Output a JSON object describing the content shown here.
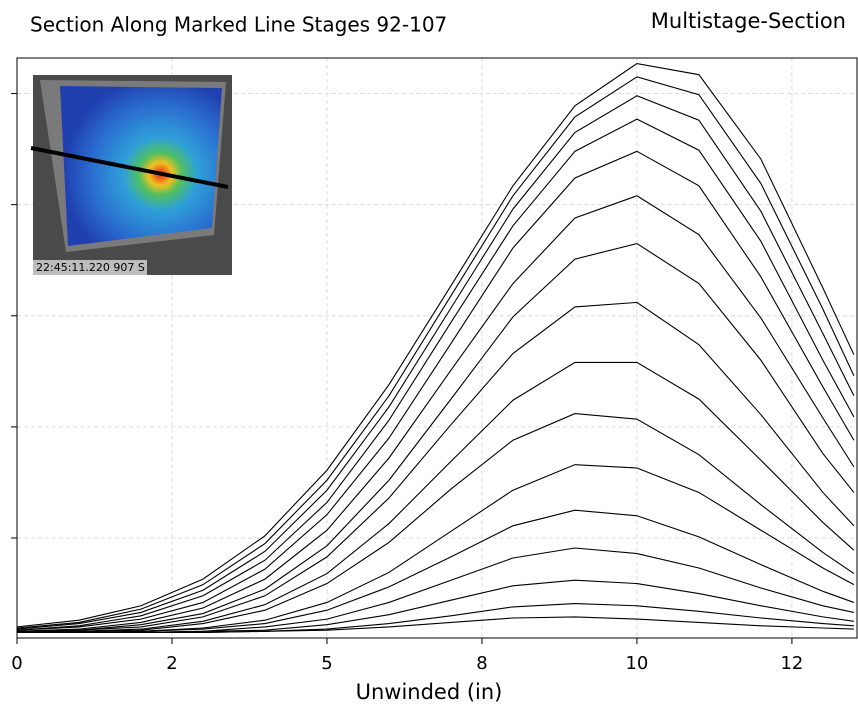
{
  "chart_data": {
    "type": "line",
    "title": "Section Along Marked Line Stages 92-107",
    "subtitle": "Multistage-Section",
    "x_label": "Unwinded (in)",
    "inset_label": "22:45:11.220 907 S",
    "grid": true,
    "xlim": [
      0,
      13.55
    ],
    "ylim": [
      0.1,
      5.32
    ],
    "xticks": [
      0,
      {
        "value": 2.5,
        "label": "2"
      },
      5,
      {
        "value": 7.5,
        "label": "8"
      },
      10,
      {
        "value": 12.5,
        "label": "12"
      }
    ],
    "yticks": [
      1,
      2,
      3,
      4,
      5
    ],
    "x": [
      0,
      1,
      2,
      3,
      4,
      5,
      6,
      7,
      8,
      9,
      10,
      11,
      12,
      13,
      13.5
    ],
    "series": [
      {
        "color": "#000000",
        "values": [
          0.15,
          0.15,
          0.15,
          0.15,
          0.16,
          0.17,
          0.2,
          0.24,
          0.28,
          0.29,
          0.27,
          0.24,
          0.21,
          0.19,
          0.18
        ]
      },
      {
        "color": "#000000",
        "values": [
          0.15,
          0.15,
          0.15,
          0.15,
          0.16,
          0.18,
          0.23,
          0.3,
          0.38,
          0.41,
          0.39,
          0.34,
          0.28,
          0.23,
          0.21
        ]
      },
      {
        "color": "#000000",
        "values": [
          0.15,
          0.15,
          0.15,
          0.16,
          0.17,
          0.22,
          0.31,
          0.44,
          0.57,
          0.62,
          0.59,
          0.5,
          0.39,
          0.29,
          0.25
        ]
      },
      {
        "color": "#000000",
        "values": [
          0.15,
          0.15,
          0.15,
          0.16,
          0.2,
          0.27,
          0.42,
          0.62,
          0.82,
          0.91,
          0.86,
          0.73,
          0.55,
          0.39,
          0.33
        ]
      },
      {
        "color": "#000000",
        "values": [
          0.15,
          0.15,
          0.16,
          0.18,
          0.23,
          0.35,
          0.56,
          0.83,
          1.11,
          1.25,
          1.2,
          1.01,
          0.76,
          0.52,
          0.42
        ]
      },
      {
        "color": "#000000",
        "values": [
          0.15,
          0.15,
          0.16,
          0.19,
          0.26,
          0.42,
          0.69,
          1.06,
          1.43,
          1.66,
          1.63,
          1.41,
          1.07,
          0.73,
          0.58
        ]
      },
      {
        "color": "#000000",
        "values": [
          0.15,
          0.16,
          0.17,
          0.23,
          0.35,
          0.59,
          0.96,
          1.44,
          1.88,
          2.12,
          2.07,
          1.75,
          1.3,
          0.87,
          0.68
        ]
      },
      {
        "color": "#000000",
        "values": [
          0.15,
          0.16,
          0.18,
          0.25,
          0.4,
          0.68,
          1.13,
          1.69,
          2.24,
          2.58,
          2.58,
          2.25,
          1.7,
          1.14,
          0.89
        ]
      },
      {
        "color": "#000000",
        "values": [
          0.15,
          0.17,
          0.2,
          0.29,
          0.48,
          0.83,
          1.36,
          2.02,
          2.66,
          3.08,
          3.12,
          2.74,
          2.11,
          1.41,
          1.11
        ]
      },
      {
        "color": "#000000",
        "values": [
          0.16,
          0.17,
          0.22,
          0.32,
          0.54,
          0.93,
          1.52,
          2.25,
          2.99,
          3.51,
          3.65,
          3.29,
          2.6,
          1.76,
          1.41
        ]
      },
      {
        "color": "#000000",
        "values": [
          0.16,
          0.18,
          0.24,
          0.37,
          0.63,
          1.07,
          1.72,
          2.51,
          3.29,
          3.88,
          4.08,
          3.73,
          2.98,
          2.08,
          1.64
        ]
      },
      {
        "color": "#000000",
        "values": [
          0.17,
          0.2,
          0.27,
          0.42,
          0.72,
          1.21,
          1.9,
          2.75,
          3.61,
          4.24,
          4.48,
          4.17,
          3.35,
          2.36,
          1.88
        ]
      },
      {
        "color": "#000000",
        "values": [
          0.17,
          0.21,
          0.3,
          0.48,
          0.8,
          1.32,
          2.06,
          2.94,
          3.81,
          4.48,
          4.77,
          4.49,
          3.67,
          2.6,
          2.09
        ]
      },
      {
        "color": "#000000",
        "values": [
          0.18,
          0.23,
          0.33,
          0.53,
          0.88,
          1.43,
          2.18,
          3.07,
          3.96,
          4.65,
          4.98,
          4.76,
          3.94,
          2.84,
          2.28
        ]
      },
      {
        "color": "#000000",
        "values": [
          0.19,
          0.24,
          0.36,
          0.58,
          0.95,
          1.52,
          2.28,
          3.18,
          4.08,
          4.79,
          5.15,
          4.99,
          4.19,
          3.06,
          2.46
        ]
      },
      {
        "color": "#000000",
        "values": [
          0.2,
          0.26,
          0.39,
          0.63,
          1.02,
          1.61,
          2.38,
          3.27,
          4.17,
          4.89,
          5.27,
          5.17,
          4.41,
          3.25,
          2.65
        ]
      }
    ]
  }
}
